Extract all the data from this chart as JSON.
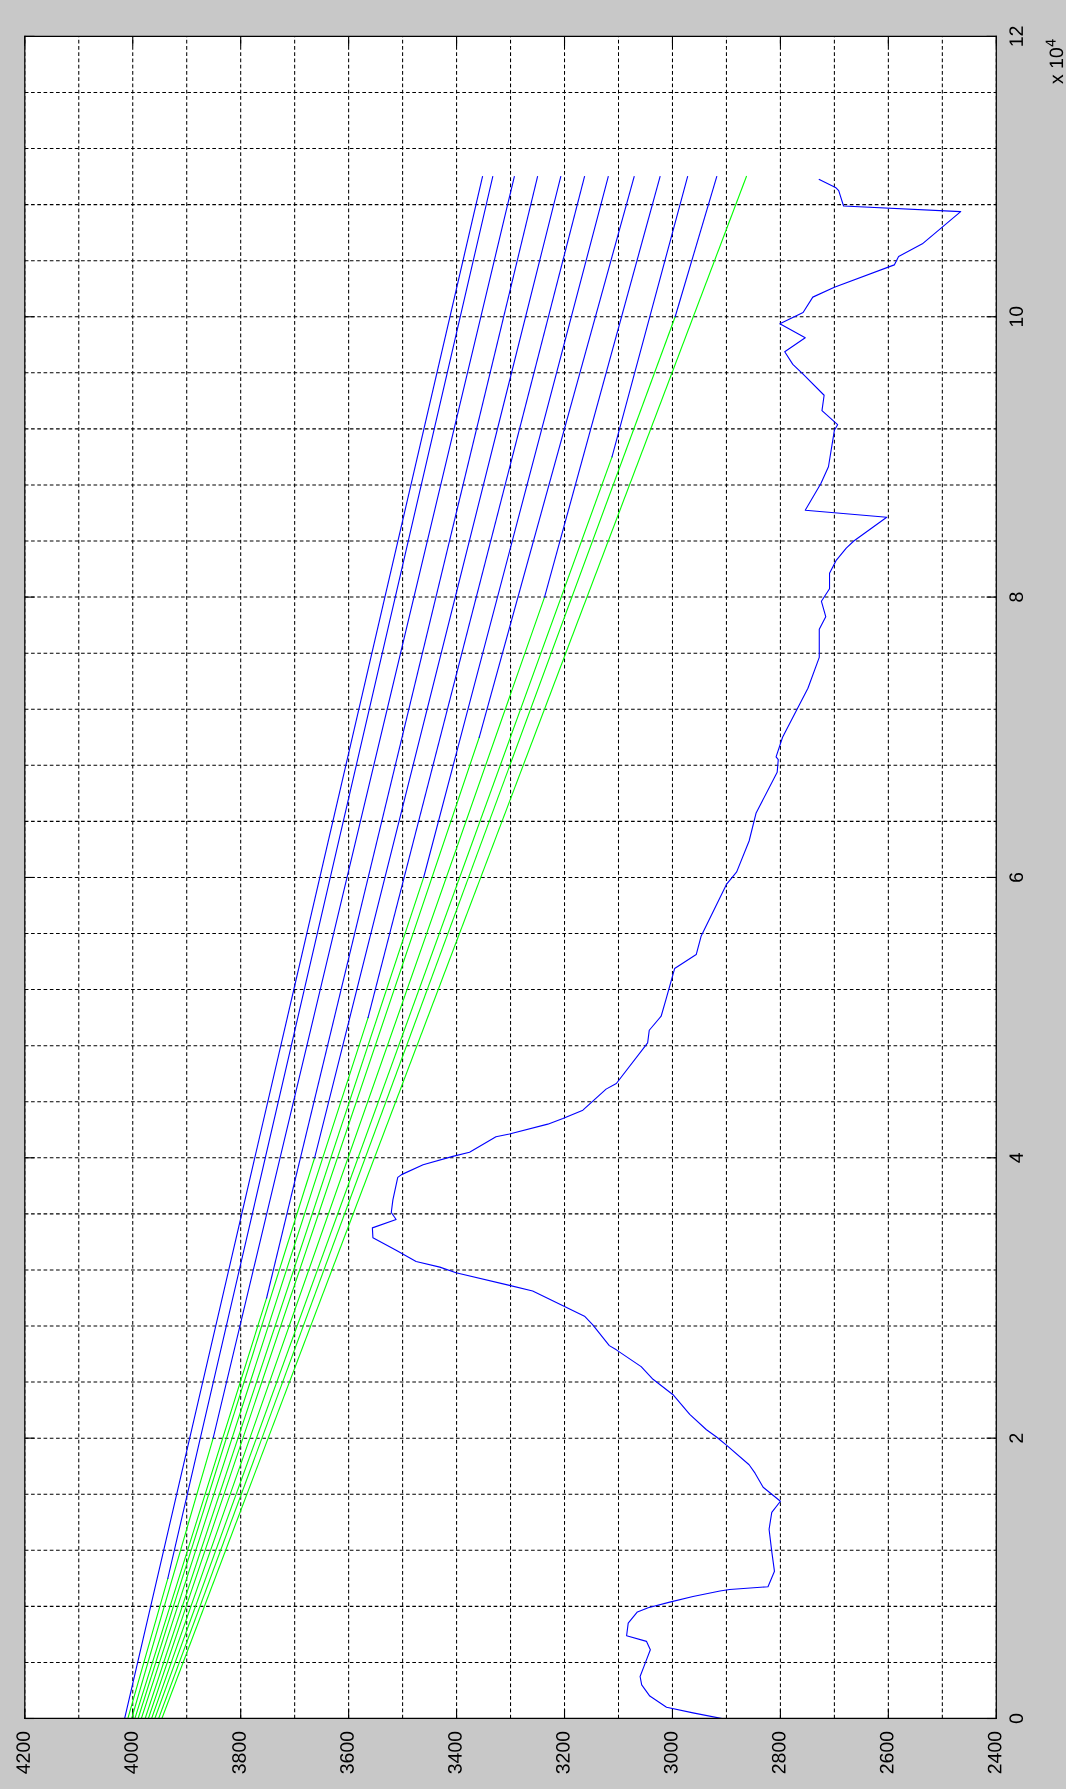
{
  "chart_data": {
    "type": "line",
    "xlim": [
      4200,
      2400
    ],
    "ylim": [
      0,
      12
    ],
    "xticks": [
      4200,
      {
        "value": 4100,
        "label": null
      },
      4000,
      {
        "value": 3900,
        "label": null
      },
      3800,
      {
        "value": 3700,
        "label": null
      },
      3600,
      {
        "value": 3500,
        "label": null
      },
      3400,
      {
        "value": 3300,
        "label": null
      },
      3200,
      {
        "value": 3100,
        "label": null
      },
      3000,
      {
        "value": 2900,
        "label": null
      },
      2800,
      {
        "value": 2700,
        "label": null
      },
      2600,
      {
        "value": 2500,
        "label": null
      },
      2400
    ],
    "yticks": [
      0,
      {
        "value": 0.4,
        "label": null
      },
      {
        "value": 0.8,
        "label": null
      },
      {
        "value": 1.2,
        "label": null
      },
      {
        "value": 1.6,
        "label": null
      },
      2,
      {
        "value": 2.4,
        "label": null
      },
      {
        "value": 2.8,
        "label": null
      },
      {
        "value": 3.2,
        "label": null
      },
      {
        "value": 3.6,
        "label": null
      },
      4,
      {
        "value": 4.4,
        "label": null
      },
      {
        "value": 4.8,
        "label": null
      },
      {
        "value": 5.2,
        "label": null
      },
      {
        "value": 5.6,
        "label": null
      },
      6,
      {
        "value": 6.4,
        "label": null
      },
      {
        "value": 6.8,
        "label": null
      },
      {
        "value": 7.2,
        "label": null
      },
      {
        "value": 7.6,
        "label": null
      },
      8,
      {
        "value": 8.4,
        "label": null
      },
      {
        "value": 8.8,
        "label": null
      },
      {
        "value": 9.2,
        "label": null
      },
      {
        "value": 9.6,
        "label": null
      },
      10,
      {
        "value": 10.4,
        "label": null
      },
      {
        "value": 10.8,
        "label": null
      },
      {
        "value": 11.2,
        "label": null
      },
      {
        "value": 11.6,
        "label": null
      },
      12
    ],
    "annotations": [
      "x 10$^{4}$"
    ],
    "grid": true,
    "line_style": "solid",
    "series": [
      {
        "color": "#0000ff",
        "x": [
          2909,
          2962,
          3011,
          3042,
          3057,
          3060,
          3051,
          3041,
          3048,
          3085,
          3082,
          3065,
          3045,
          3005,
          2962,
          2912,
          2894,
          2823,
          2811,
          2816,
          2821,
          2816,
          2800,
          2832,
          2847,
          2858,
          2900,
          2919,
          2937,
          2968,
          2999,
          3036,
          3058,
          3104,
          3117,
          3148,
          3163,
          3200,
          3259,
          3302,
          3401,
          3431,
          3475,
          3512,
          3555,
          3556,
          3512,
          3521,
          3518,
          3509,
          3502,
          3462,
          3407,
          3376,
          3327,
          3302,
          3231,
          3203,
          3166,
          3123,
          3104,
          3046,
          3043,
          3021,
          3012,
          2996,
          2956,
          2947,
          2900,
          2881,
          2858,
          2845,
          2806,
          2804,
          2808,
          2796,
          2749,
          2728,
          2728,
          2716,
          2724,
          2709,
          2709,
          2697,
          2678,
          2664,
          2603,
          2754,
          2725,
          2711,
          2700,
          2694,
          2723,
          2719,
          2758,
          2777,
          2792,
          2754,
          2801,
          2758,
          2740,
          2700,
          2589,
          2581,
          2537,
          2466,
          2683,
          2692,
          2697,
          2728
        ],
        "values": [
          0,
          0.04,
          0.08,
          0.16,
          0.24,
          0.3,
          0.39,
          0.49,
          0.55,
          0.59,
          0.68,
          0.76,
          0.79,
          0.83,
          0.87,
          0.91,
          0.92,
          0.94,
          1.05,
          1.19,
          1.35,
          1.47,
          1.55,
          1.65,
          1.75,
          1.81,
          1.95,
          2.01,
          2.06,
          2.17,
          2.31,
          2.42,
          2.51,
          2.63,
          2.66,
          2.81,
          2.87,
          2.94,
          3.05,
          3.09,
          3.18,
          3.22,
          3.26,
          3.34,
          3.43,
          3.5,
          3.56,
          3.61,
          3.7,
          3.86,
          3.88,
          3.95,
          4.01,
          4.04,
          4.15,
          4.17,
          4.24,
          4.28,
          4.34,
          4.49,
          4.53,
          4.82,
          4.91,
          5.01,
          5.13,
          5.35,
          5.45,
          5.58,
          5.95,
          6.04,
          6.26,
          6.46,
          6.75,
          6.84,
          6.86,
          7.0,
          7.35,
          7.57,
          7.77,
          7.86,
          7.97,
          8.06,
          8.17,
          8.26,
          8.35,
          8.4,
          8.57,
          8.62,
          8.81,
          8.93,
          9.19,
          9.23,
          9.33,
          9.44,
          9.59,
          9.66,
          9.75,
          9.85,
          9.95,
          10.03,
          10.14,
          10.21,
          10.37,
          10.43,
          10.52,
          10.75,
          10.79,
          10.9,
          10.92,
          10.98
        ]
      },
      {
        "color": "#0000ff",
        "x": [
          4015,
          3352
        ],
        "values": [
          0,
          11
        ]
      },
      {
        "color": "#00ff00",
        "x": [
          4009,
          3935
        ],
        "values": [
          0,
          1
        ]
      },
      {
        "color": "#0000ff",
        "x": [
          3935,
          3333
        ],
        "values": [
          1,
          11
        ]
      },
      {
        "color": "#00ff00",
        "x": [
          4002,
          3851
        ],
        "values": [
          0,
          2
        ]
      },
      {
        "color": "#0000ff",
        "x": [
          3851,
          3293
        ],
        "values": [
          2,
          11
        ]
      },
      {
        "color": "#00ff00",
        "x": [
          3996,
          3752
        ],
        "values": [
          0,
          3
        ]
      },
      {
        "color": "#0000ff",
        "x": [
          3752,
          3250
        ],
        "values": [
          3,
          11
        ]
      },
      {
        "color": "#00ff00",
        "x": [
          3990,
          3663
        ],
        "values": [
          0,
          4
        ]
      },
      {
        "color": "#0000ff",
        "x": [
          3663,
          3207
        ],
        "values": [
          4,
          11
        ]
      },
      {
        "color": "#00ff00",
        "x": [
          3984,
          3564
        ],
        "values": [
          0,
          5
        ]
      },
      {
        "color": "#0000ff",
        "x": [
          3564,
          3163
        ],
        "values": [
          5,
          11
        ]
      },
      {
        "color": "#00ff00",
        "x": [
          3977,
          3461
        ],
        "values": [
          0,
          6
        ]
      },
      {
        "color": "#0000ff",
        "x": [
          3461,
          3119
        ],
        "values": [
          6,
          11
        ]
      },
      {
        "color": "#00ff00",
        "x": [
          3971,
          3358
        ],
        "values": [
          0,
          7
        ]
      },
      {
        "color": "#0000ff",
        "x": [
          3358,
          3071
        ],
        "values": [
          7,
          11
        ]
      },
      {
        "color": "#00ff00",
        "x": [
          3965,
          3237
        ],
        "values": [
          0,
          8
        ]
      },
      {
        "color": "#0000ff",
        "x": [
          3237,
          3023
        ],
        "values": [
          8,
          11
        ]
      },
      {
        "color": "#00ff00",
        "x": [
          3959,
          3112
        ],
        "values": [
          0,
          9
        ]
      },
      {
        "color": "#0000ff",
        "x": [
          3112,
          2972
        ],
        "values": [
          9,
          11
        ]
      },
      {
        "color": "#00ff00",
        "x": [
          3952,
          2995
        ],
        "values": [
          0,
          10
        ]
      },
      {
        "color": "#0000ff",
        "x": [
          2995,
          2918
        ],
        "values": [
          10,
          11
        ]
      },
      {
        "color": "#00ff00",
        "x": [
          3946,
          2863
        ],
        "values": [
          0,
          11
        ]
      }
    ]
  }
}
